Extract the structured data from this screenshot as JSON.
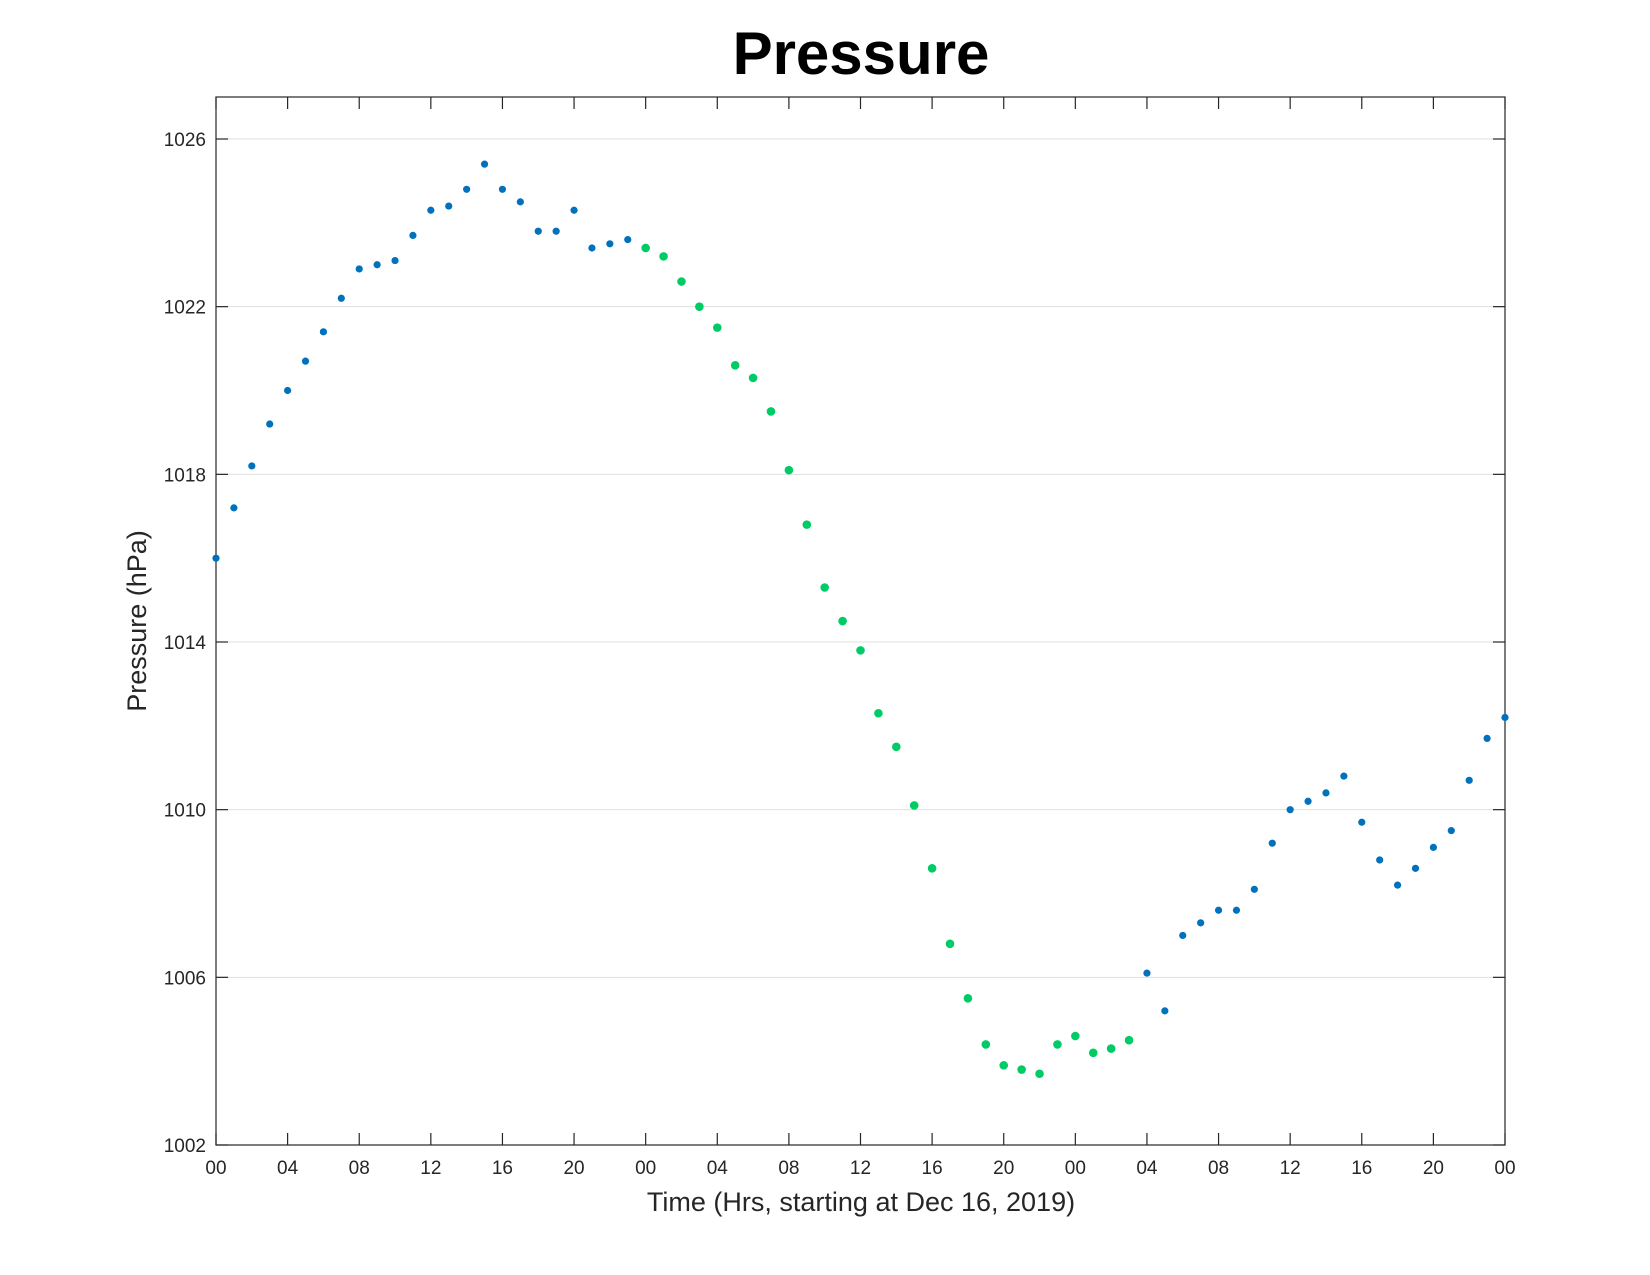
{
  "chart_data": {
    "type": "scatter",
    "title": "Pressure",
    "xlabel": "Time (Hrs, starting at Dec 16, 2019)",
    "ylabel": "Pressure (hPa)",
    "xlim": [
      0,
      72
    ],
    "ylim": [
      1002,
      1027
    ],
    "x_unit": "hours since 2019-12-16 00:00",
    "xticks": [
      0,
      4,
      8,
      12,
      16,
      20,
      24,
      28,
      32,
      36,
      40,
      44,
      48,
      52,
      56,
      60,
      64,
      68,
      72
    ],
    "xtick_labels": [
      "00",
      "04",
      "08",
      "12",
      "16",
      "20",
      "00",
      "04",
      "08",
      "12",
      "16",
      "20",
      "00",
      "04",
      "08",
      "12",
      "16",
      "20",
      "00"
    ],
    "yticks": [
      1002,
      1006,
      1010,
      1014,
      1018,
      1022,
      1026
    ],
    "ytick_labels": [
      "1002",
      "1006",
      "1010",
      "1014",
      "1018",
      "1022",
      "1026"
    ],
    "grid": "horizontal",
    "series": [
      {
        "color": "#0072bd",
        "x": [
          0,
          1,
          2,
          3,
          4,
          5,
          6,
          7,
          8,
          9,
          10,
          11,
          12,
          13,
          14,
          15,
          16,
          17,
          18,
          19,
          20,
          21,
          22,
          23,
          52,
          53,
          54,
          55,
          56,
          57,
          58,
          59,
          60,
          61,
          62,
          63,
          64,
          65,
          66,
          67,
          68,
          69,
          70,
          71,
          72
        ],
        "values": [
          1016.0,
          1017.2,
          1018.2,
          1019.2,
          1020.0,
          1020.7,
          1021.4,
          1022.2,
          1022.9,
          1023.0,
          1023.1,
          1023.7,
          1024.3,
          1024.4,
          1024.8,
          1025.4,
          1024.8,
          1024.5,
          1023.8,
          1023.8,
          1024.3,
          1023.4,
          1023.5,
          1023.6,
          1006.1,
          1005.2,
          1007.0,
          1007.3,
          1007.6,
          1007.6,
          1008.1,
          1009.2,
          1010.0,
          1010.2,
          1010.4,
          1010.8,
          1009.7,
          1008.8,
          1008.2,
          1008.6,
          1009.1,
          1009.5,
          1010.7,
          1011.7,
          1012.2
        ]
      },
      {
        "color": "#00cc66",
        "x": [
          24,
          25,
          26,
          27,
          28,
          29,
          30,
          31,
          32,
          33,
          34,
          35,
          36,
          37,
          38,
          39,
          40,
          41,
          42,
          43,
          44,
          45,
          46,
          47,
          48,
          49,
          50,
          51
        ],
        "values": [
          1023.4,
          1023.2,
          1022.6,
          1022.0,
          1021.5,
          1020.6,
          1020.3,
          1019.5,
          1018.1,
          1016.8,
          1015.3,
          1014.5,
          1013.8,
          1012.3,
          1011.5,
          1010.1,
          1008.6,
          1006.8,
          1005.5,
          1004.4,
          1003.9,
          1003.8,
          1003.7,
          1004.4,
          1004.6,
          1004.2,
          1004.3,
          1004.5
        ]
      }
    ]
  }
}
